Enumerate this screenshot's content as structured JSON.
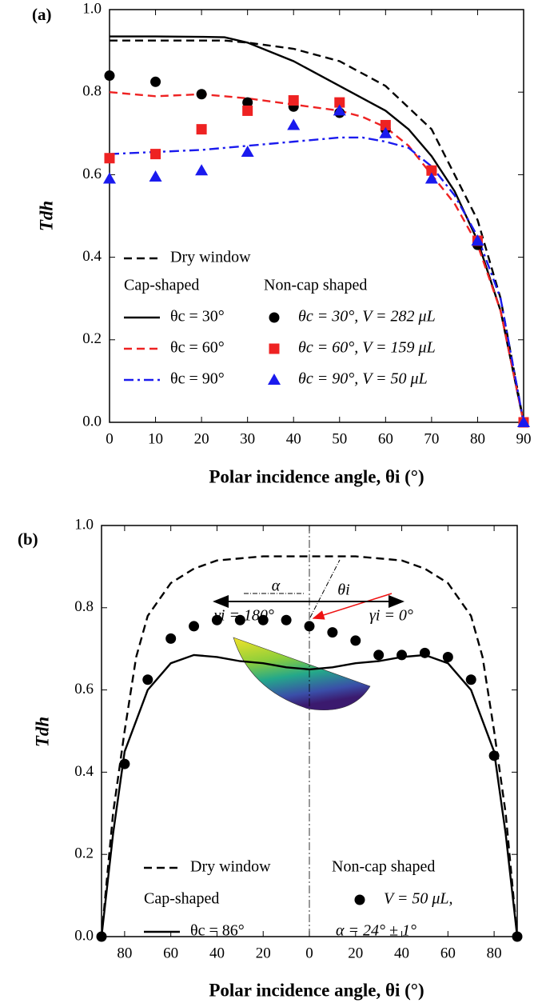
{
  "chart_data": [
    {
      "type": "line",
      "panel": "(a)",
      "x_label": "Polar incidence angle, θi (°)",
      "y_label": "Tdh",
      "xlim": [
        0,
        90
      ],
      "xticks": [
        0,
        10,
        20,
        30,
        40,
        50,
        60,
        70,
        80,
        90
      ],
      "ylim": [
        0,
        1
      ],
      "yticks": [
        {
          "value": 0,
          "label": "0.0"
        },
        0.2,
        0.4,
        0.6,
        0.8,
        {
          "value": 1,
          "label": "1.0"
        }
      ],
      "legend_headers": [
        "Cap-shaped",
        "Non-cap shaped"
      ],
      "series": [
        {
          "name": "Dry window",
          "color": "#000000",
          "style": "dashed",
          "x": [
            0,
            10,
            20,
            25,
            30,
            40,
            50,
            60,
            70,
            80,
            85,
            90
          ],
          "values": [
            0.925,
            0.925,
            0.925,
            0.925,
            0.92,
            0.905,
            0.875,
            0.815,
            0.71,
            0.49,
            0.3,
            0
          ]
        },
        {
          "name": "θc = 30°",
          "color": "#000000",
          "style": "solid",
          "x": [
            0,
            10,
            20,
            25,
            30,
            40,
            50,
            60,
            65,
            70,
            75,
            80,
            85,
            90
          ],
          "values": [
            0.935,
            0.935,
            0.934,
            0.933,
            0.92,
            0.875,
            0.815,
            0.755,
            0.71,
            0.645,
            0.56,
            0.44,
            0.27,
            0
          ]
        },
        {
          "name": "θc = 60°",
          "color": "#ee2222",
          "style": "dashed",
          "x": [
            0,
            10,
            20,
            30,
            40,
            50,
            55,
            60,
            65,
            70,
            75,
            80,
            85,
            90
          ],
          "values": [
            0.8,
            0.79,
            0.795,
            0.785,
            0.77,
            0.755,
            0.74,
            0.715,
            0.67,
            0.6,
            0.53,
            0.43,
            0.27,
            0
          ]
        },
        {
          "name": "θc = 90°",
          "color": "#1a1aee",
          "style": "dashdot",
          "x": [
            0,
            10,
            20,
            30,
            40,
            50,
            55,
            60,
            65,
            70,
            75,
            80,
            85,
            90
          ],
          "values": [
            0.65,
            0.655,
            0.66,
            0.67,
            0.68,
            0.69,
            0.69,
            0.68,
            0.665,
            0.62,
            0.55,
            0.45,
            0.3,
            0
          ]
        },
        {
          "name": "θc = 30°,  V = 282 μL",
          "color": "#000000",
          "marker": "circle",
          "x": [
            0,
            10,
            20,
            30,
            40,
            50,
            60,
            70,
            80,
            90
          ],
          "values": [
            0.84,
            0.825,
            0.795,
            0.775,
            0.765,
            0.75,
            0.71,
            0.61,
            0.43,
            0
          ]
        },
        {
          "name": "θc = 60°,  V = 159 μL",
          "color": "#ee2222",
          "marker": "square",
          "x": [
            0,
            10,
            20,
            30,
            40,
            50,
            60,
            70,
            80,
            90
          ],
          "values": [
            0.64,
            0.65,
            0.71,
            0.755,
            0.78,
            0.775,
            0.72,
            0.61,
            0.44,
            0
          ]
        },
        {
          "name": "θc = 90°,  V = 50 μL",
          "color": "#1a1aee",
          "marker": "triangle",
          "x": [
            0,
            10,
            20,
            30,
            40,
            50,
            60,
            70,
            80,
            90
          ],
          "values": [
            0.59,
            0.595,
            0.61,
            0.655,
            0.72,
            0.755,
            0.7,
            0.59,
            0.44,
            0
          ]
        }
      ]
    },
    {
      "type": "line",
      "panel": "(b)",
      "x_label": "Polar incidence angle, θi (°)",
      "y_label": "Tdh",
      "xlim": [
        -90,
        90
      ],
      "xticks": [
        {
          "value": -80,
          "label": "80"
        },
        {
          "value": -60,
          "label": "60"
        },
        {
          "value": -40,
          "label": "40"
        },
        {
          "value": -20,
          "label": "20"
        },
        0,
        20,
        40,
        60,
        80
      ],
      "ylim": [
        0,
        1
      ],
      "yticks": [
        {
          "value": 0,
          "label": "0.0"
        },
        0.2,
        0.4,
        0.6,
        0.8,
        {
          "value": 1,
          "label": "1.0"
        }
      ],
      "legend_headers": [
        "Cap-shaped",
        "Non-cap shaped"
      ],
      "annotations": [
        "γi = 180°",
        "γi = 0°",
        "α",
        "θi",
        "α = 24° ± 1°"
      ],
      "series": [
        {
          "name": "Dry window",
          "color": "#000000",
          "style": "dashed",
          "x": [
            -90,
            -85,
            -80,
            -75,
            -70,
            -60,
            -50,
            -40,
            -30,
            -20,
            0,
            20,
            30,
            40,
            50,
            60,
            70,
            75,
            80,
            85,
            90
          ],
          "values": [
            0,
            0.3,
            0.5,
            0.68,
            0.78,
            0.86,
            0.895,
            0.915,
            0.92,
            0.925,
            0.925,
            0.925,
            0.92,
            0.915,
            0.895,
            0.86,
            0.78,
            0.68,
            0.5,
            0.3,
            0
          ]
        },
        {
          "name": "θc = 86°",
          "color": "#000000",
          "style": "solid",
          "x": [
            -90,
            -85,
            -80,
            -70,
            -60,
            -50,
            -40,
            -30,
            -20,
            -10,
            0,
            10,
            20,
            30,
            40,
            50,
            60,
            70,
            80,
            85,
            90
          ],
          "values": [
            0,
            0.25,
            0.45,
            0.6,
            0.665,
            0.685,
            0.68,
            0.67,
            0.665,
            0.655,
            0.65,
            0.655,
            0.665,
            0.67,
            0.68,
            0.685,
            0.665,
            0.6,
            0.45,
            0.25,
            0
          ]
        },
        {
          "name": "V = 50 μL,",
          "color": "#000000",
          "marker": "circle",
          "x": [
            -90,
            -80,
            -70,
            -60,
            -50,
            -40,
            -30,
            -20,
            -10,
            0,
            10,
            20,
            30,
            40,
            50,
            60,
            70,
            80,
            90
          ],
          "values": [
            0,
            0.42,
            0.625,
            0.725,
            0.755,
            0.77,
            0.77,
            0.77,
            0.77,
            0.755,
            0.74,
            0.72,
            0.685,
            0.685,
            0.69,
            0.68,
            0.625,
            0.44,
            0
          ]
        }
      ]
    }
  ]
}
